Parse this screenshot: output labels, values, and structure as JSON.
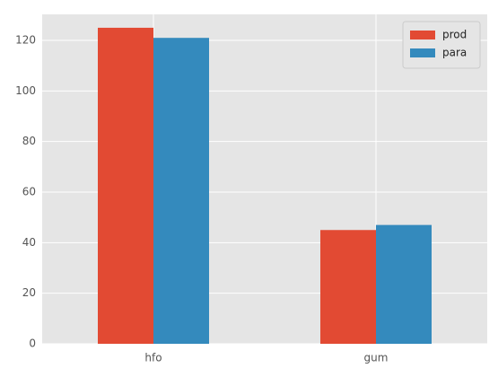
{
  "chart_data": {
    "type": "bar",
    "categories": [
      "hfo",
      "gum"
    ],
    "series": [
      {
        "name": "prod",
        "color": "#e24a33",
        "values": [
          125,
          45
        ]
      },
      {
        "name": "para",
        "color": "#348abd",
        "values": [
          121,
          47
        ]
      }
    ],
    "ylim": [
      0,
      130.3
    ],
    "yticks": [
      0,
      20,
      40,
      60,
      80,
      100,
      120
    ],
    "grid": true,
    "legend": "upper right"
  }
}
